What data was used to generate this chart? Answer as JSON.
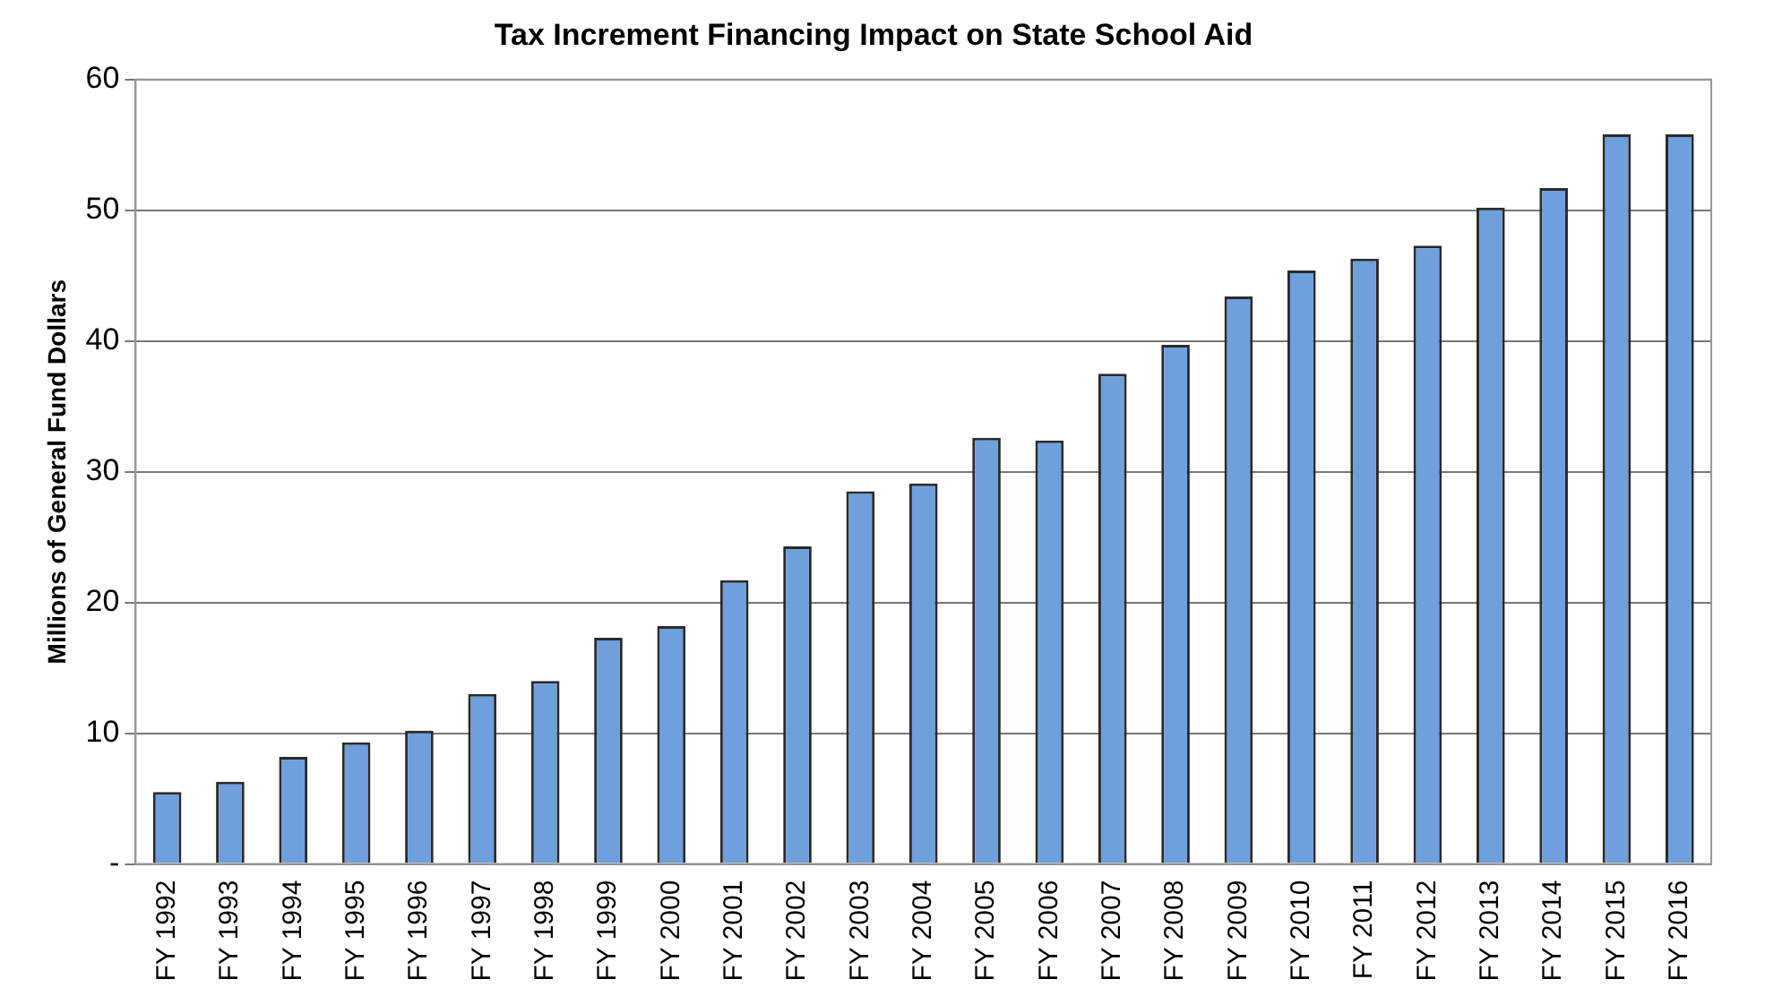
{
  "chart_data": {
    "type": "bar",
    "title": "Tax Increment Financing Impact on State School Aid",
    "ylabel": "Millions of General Fund Dollars",
    "categories": [
      "FY 1992",
      "FY 1993",
      "FY 1994",
      "FY 1995",
      "FY 1996",
      "FY 1997",
      "FY 1998",
      "FY 1999",
      "FY 2000",
      "FY 2001",
      "FY 2002",
      "FY 2003",
      "FY 2004",
      "FY 2005",
      "FY 2006",
      "FY 2007",
      "FY 2008",
      "FY 2009",
      "FY 2010",
      "FY 2011",
      "FY 2012",
      "FY 2013",
      "FY 2014",
      "FY 2015",
      "FY 2016"
    ],
    "values": [
      5.5,
      6.3,
      8.2,
      9.3,
      10.2,
      13,
      14,
      17.3,
      18.2,
      21.7,
      24.3,
      28.5,
      29.1,
      32.6,
      32.4,
      37.5,
      39.7,
      43.4,
      45.4,
      46.3,
      47.3,
      50.2,
      51.7,
      55.8,
      55.8
    ],
    "color": "#6f9fdc",
    "ylim": [
      0,
      60
    ],
    "yticks": [
      {
        "value": 0,
        "label": "-"
      },
      10,
      20,
      30,
      40,
      50,
      60
    ],
    "grid": "y",
    "legend": false
  }
}
